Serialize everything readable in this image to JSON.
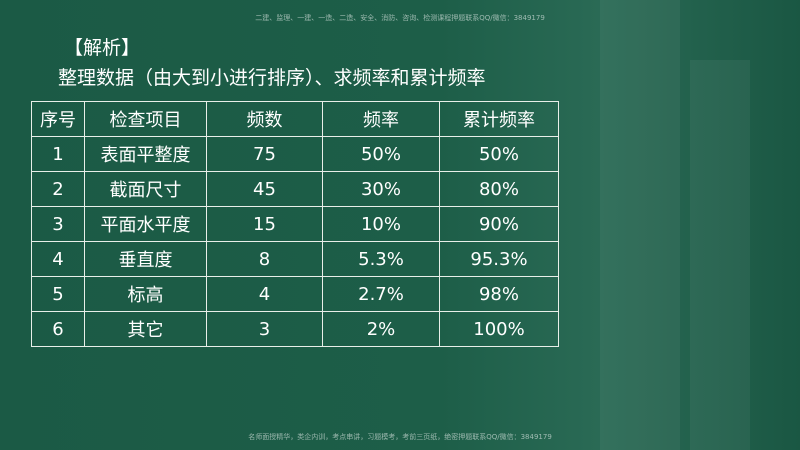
{
  "watermark_top": "二建、监理、一建、一造、二造、安全、消防、咨询、检测课程押题联系QQ/微信：3849179",
  "heading": {
    "label": "【解析】",
    "subtitle": "整理数据（由大到小进行排序）、求频率和累计频率"
  },
  "table": {
    "header": [
      "序号",
      "检查项目",
      "频数",
      "频率",
      "累计频率"
    ],
    "rows": [
      [
        "1",
        "表面平整度",
        "75",
        "50%",
        "50%"
      ],
      [
        "2",
        "截面尺寸",
        "45",
        "30%",
        "80%"
      ],
      [
        "3",
        "平面水平度",
        "15",
        "10%",
        "90%"
      ],
      [
        "4",
        "垂直度",
        "8",
        "5.3%",
        "95.3%"
      ],
      [
        "5",
        "标高",
        "4",
        "2.7%",
        "98%"
      ],
      [
        "6",
        "其它",
        "3",
        "2%",
        "100%"
      ]
    ]
  },
  "watermark_bottom": "名师面授精华，类企内训，考点串讲，习题模考，考前三页纸，绝密押题联系QQ/微信：3849179"
}
